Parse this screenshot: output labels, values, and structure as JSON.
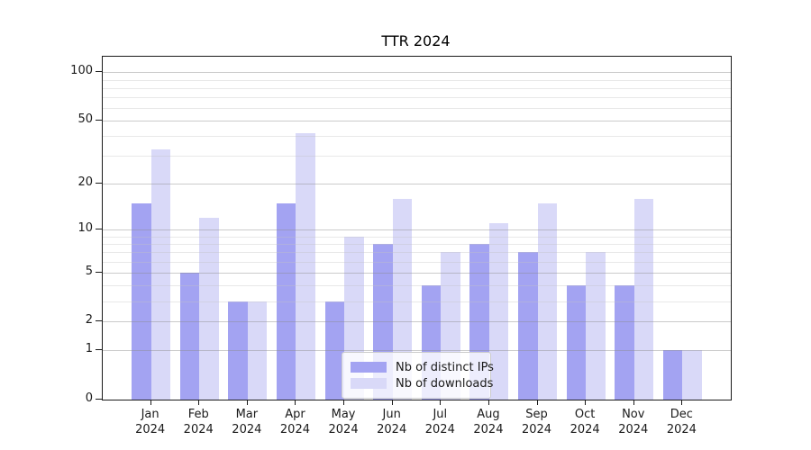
{
  "title": "TTR 2024",
  "legend": {
    "items": [
      {
        "label": "Nb of distinct IPs",
        "color": "#a3a3f2"
      },
      {
        "label": "Nb of downloads",
        "color": "#d9d9f8"
      }
    ]
  },
  "chart_data": {
    "type": "bar",
    "title": "TTR 2024",
    "categories": [
      "Jan 2024",
      "Feb 2024",
      "Mar 2024",
      "Apr 2024",
      "May 2024",
      "Jun 2024",
      "Jul 2024",
      "Aug 2024",
      "Sep 2024",
      "Oct 2024",
      "Nov 2024",
      "Dec 2024"
    ],
    "series": [
      {
        "name": "Nb of distinct IPs",
        "color": "#a3a3f2",
        "values": [
          15,
          5,
          3,
          15,
          3,
          8,
          4,
          8,
          7,
          4,
          4,
          1
        ]
      },
      {
        "name": "Nb of downloads",
        "color": "#d9d9f8",
        "values": [
          33,
          12,
          3,
          42,
          9,
          16,
          7,
          11,
          15,
          7,
          16,
          1
        ]
      }
    ],
    "xlabel": "",
    "ylabel": "",
    "yscale": "log10(value+1)",
    "yticks": [
      0,
      1,
      2,
      5,
      10,
      20,
      50,
      100
    ],
    "minor_gridline_values": [
      3,
      4,
      6,
      7,
      8,
      9,
      30,
      40,
      60,
      70,
      80,
      90
    ],
    "ylim": [
      0,
      125
    ],
    "grid": "horizontal major+minor, drawn above bars",
    "legend_position": "lower center inside plot",
    "colors": {
      "axis": "#1a1a1a",
      "major_grid": "#8c8c8c",
      "minor_grid": "#c3c3c3",
      "background": "#ffffff"
    }
  }
}
